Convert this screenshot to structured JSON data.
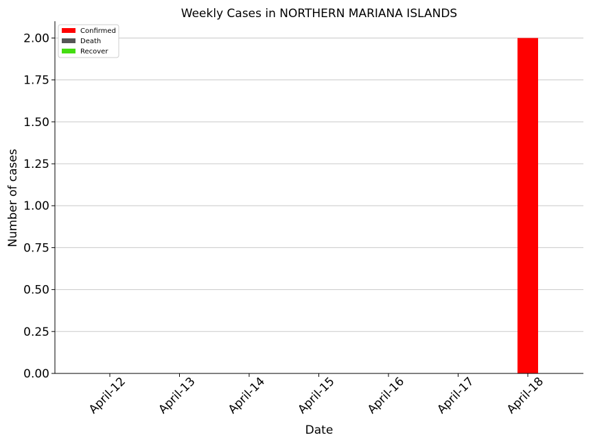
{
  "chart_data": {
    "type": "bar",
    "title": "Weekly Cases in NORTHERN MARIANA ISLANDS",
    "xlabel": "Date",
    "ylabel": "Number of cases",
    "categories": [
      "April-12",
      "April-13",
      "April-14",
      "April-15",
      "April-16",
      "April-17",
      "April-18"
    ],
    "series": [
      {
        "name": "Confirmed",
        "color": "#ff0000",
        "values": [
          0,
          0,
          0,
          0,
          0,
          0,
          2
        ]
      },
      {
        "name": "Death",
        "color": "#555555",
        "values": [
          0,
          0,
          0,
          0,
          0,
          0,
          0
        ]
      },
      {
        "name": "Recover",
        "color": "#44dd11",
        "values": [
          0,
          0,
          0,
          0,
          0,
          0,
          0
        ]
      }
    ],
    "ylim": [
      0,
      2.1
    ],
    "yticks": [
      "0.00",
      "0.25",
      "0.50",
      "0.75",
      "1.00",
      "1.25",
      "1.50",
      "1.75",
      "2.00"
    ],
    "grid": "horizontal",
    "legend_position": "top-left"
  }
}
